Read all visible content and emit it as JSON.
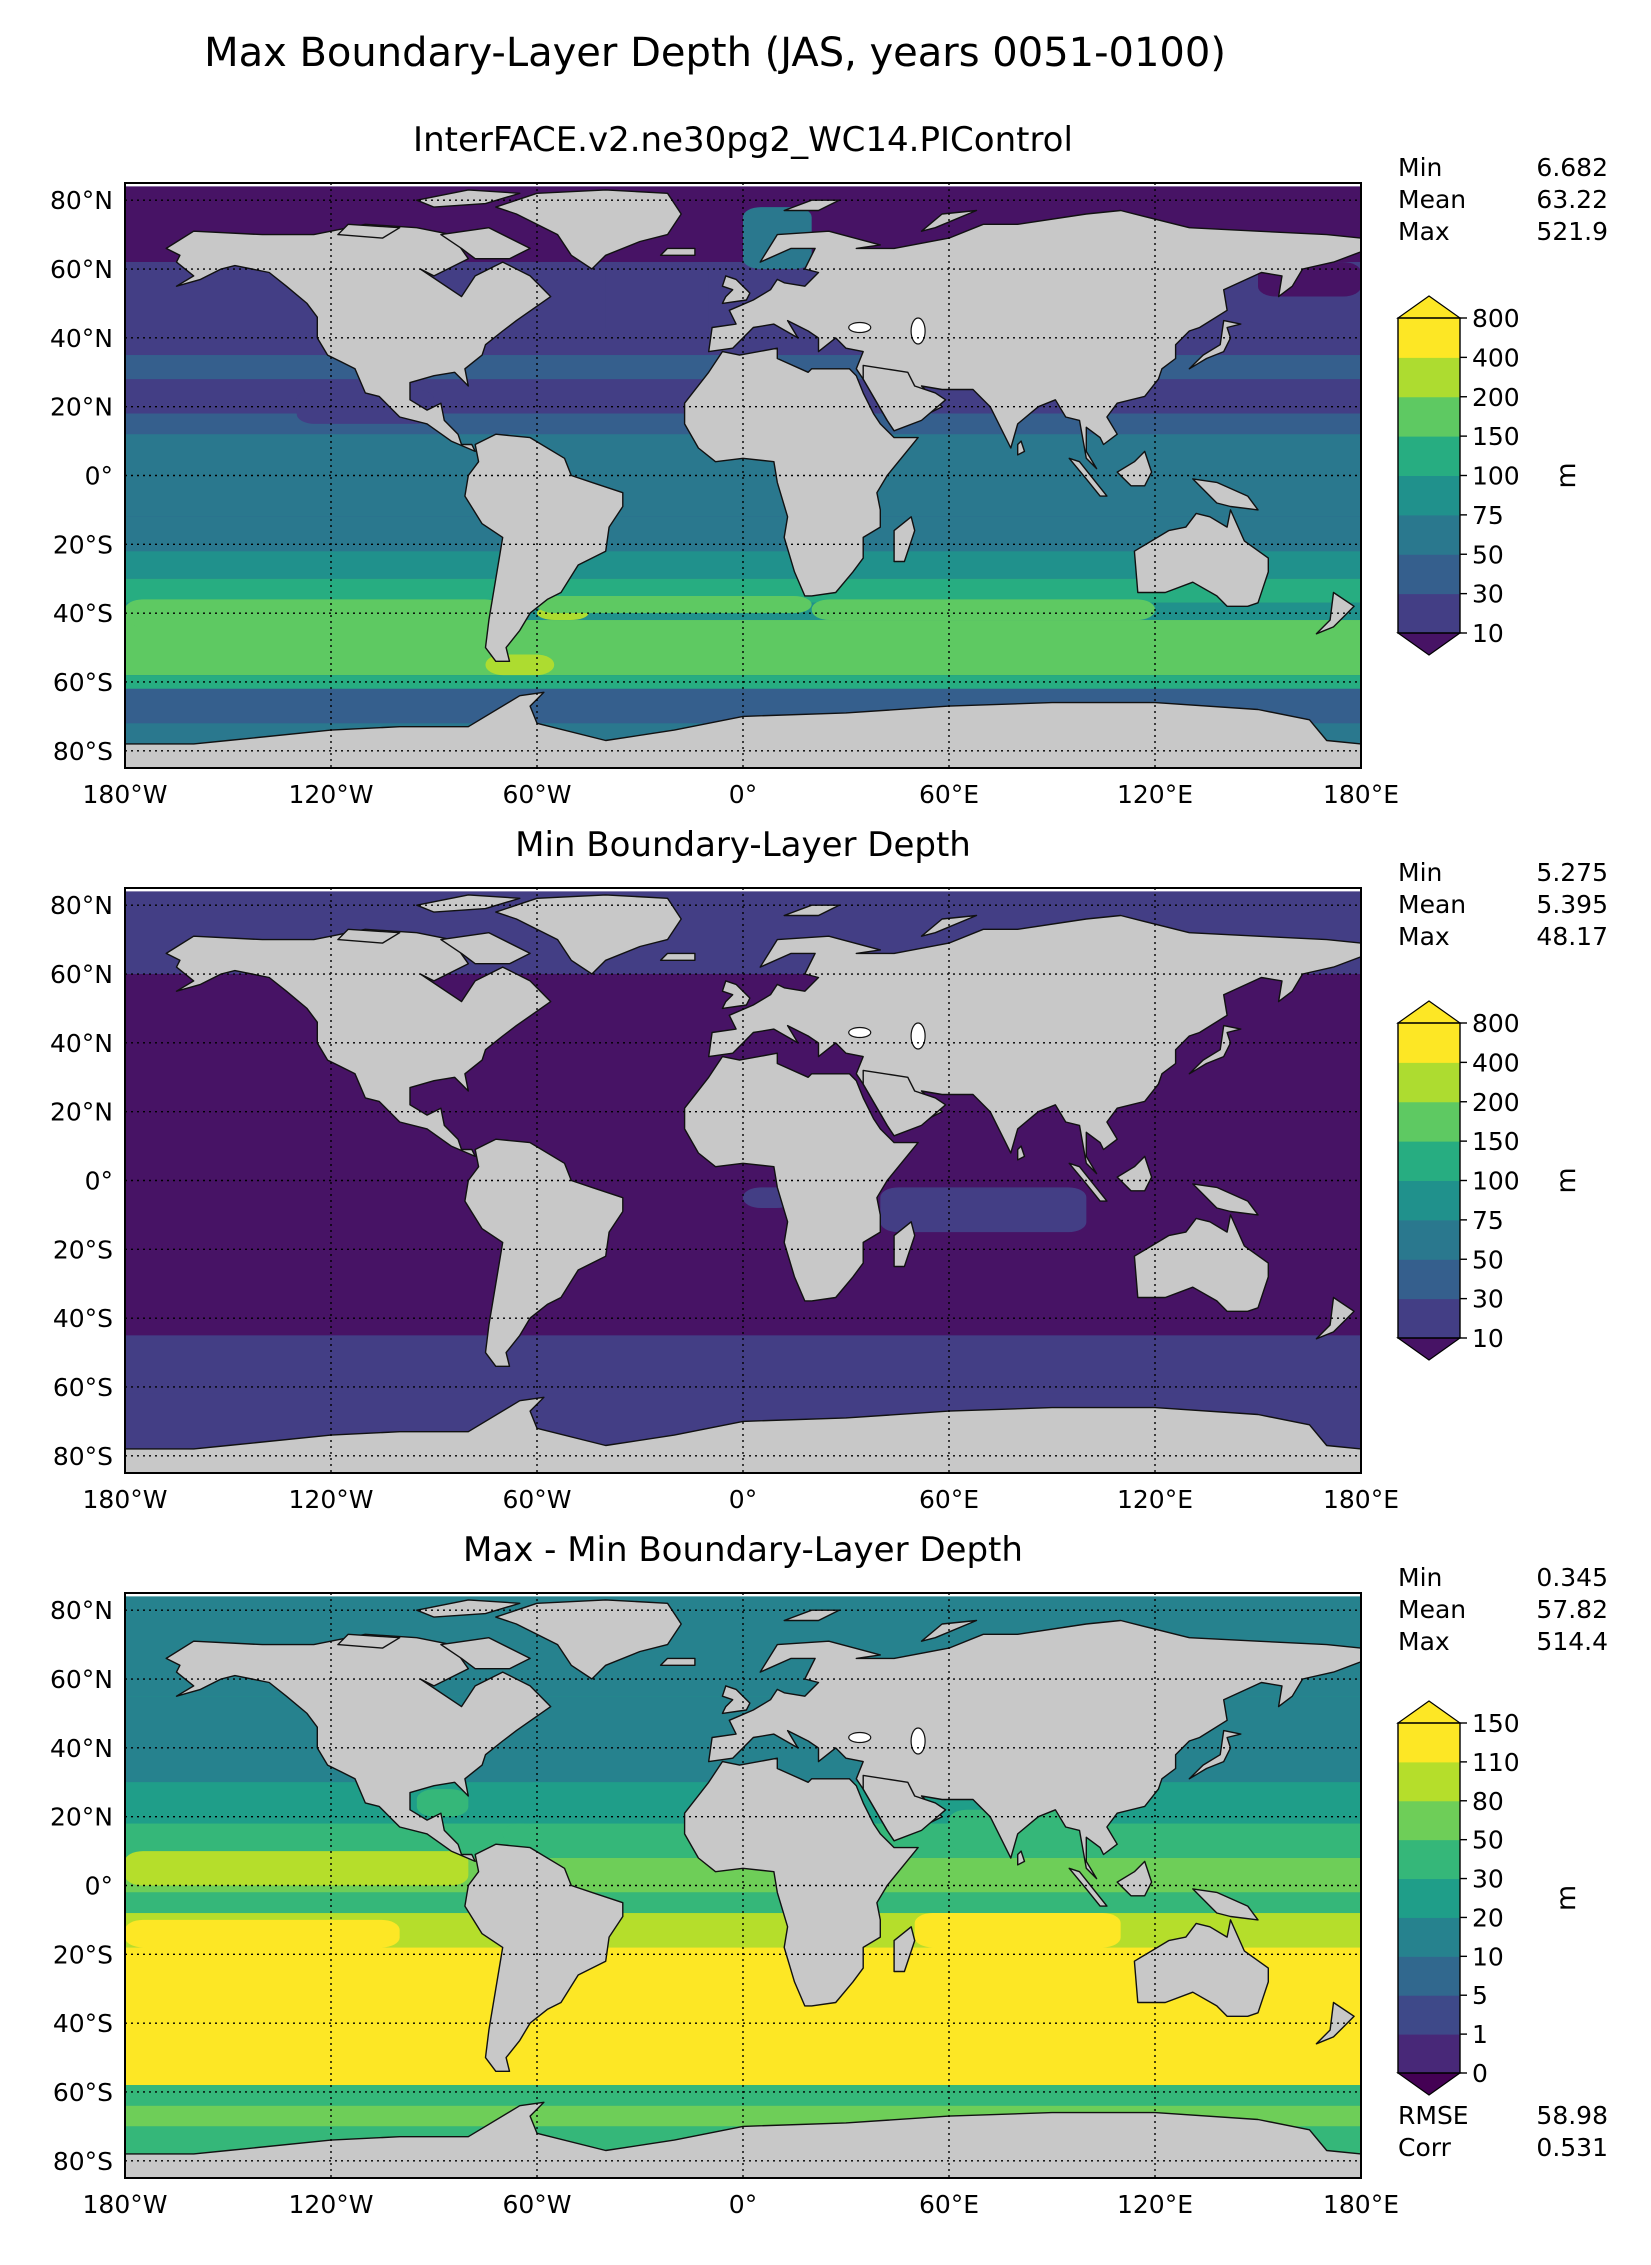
{
  "figure_title": "Max Boundary-Layer Depth (JAS, years 0051-0100)",
  "colors": {
    "land": "#c8c8c8",
    "frame": "#000000",
    "gridline": "#000000",
    "lake": "#ffffff"
  },
  "chart_data": [
    {
      "type": "contour-map",
      "title": "InterFACE.v2.ne30pg2_WC14.PIControl",
      "x_ticks": [
        "180°W",
        "120°W",
        "60°W",
        "0°",
        "60°E",
        "120°E",
        "180°E"
      ],
      "y_ticks": [
        "80°N",
        "60°N",
        "40°N",
        "20°N",
        "0°",
        "20°S",
        "40°S",
        "60°S",
        "80°S"
      ],
      "stats": [
        {
          "label": "Min",
          "value": "6.682"
        },
        {
          "label": "Mean",
          "value": "63.22"
        },
        {
          "label": "Max",
          "value": "521.9"
        }
      ],
      "colorbar": {
        "levels": [
          "10",
          "30",
          "50",
          "75",
          "100",
          "150",
          "200",
          "400",
          "800"
        ],
        "colors": [
          "#471365",
          "#433e85",
          "#355f8d",
          "#2a788e",
          "#20918c",
          "#27ad81",
          "#5ec962",
          "#addc30",
          "#fde725"
        ],
        "unit": "m"
      },
      "field": "max"
    },
    {
      "type": "contour-map",
      "title": "Min Boundary-Layer Depth",
      "x_ticks": [
        "180°W",
        "120°W",
        "60°W",
        "0°",
        "60°E",
        "120°E",
        "180°E"
      ],
      "y_ticks": [
        "80°N",
        "60°N",
        "40°N",
        "20°N",
        "0°",
        "20°S",
        "40°S",
        "60°S",
        "80°S"
      ],
      "stats": [
        {
          "label": "Min",
          "value": "5.275"
        },
        {
          "label": "Mean",
          "value": "5.395"
        },
        {
          "label": "Max",
          "value": "48.17"
        }
      ],
      "colorbar": {
        "levels": [
          "10",
          "30",
          "50",
          "75",
          "100",
          "150",
          "200",
          "400",
          "800"
        ],
        "colors": [
          "#471365",
          "#433e85",
          "#355f8d",
          "#2a788e",
          "#20918c",
          "#27ad81",
          "#5ec962",
          "#addc30",
          "#fde725"
        ],
        "unit": "m"
      },
      "field": "min"
    },
    {
      "type": "contour-map",
      "title": "Max - Min Boundary-Layer Depth",
      "x_ticks": [
        "180°W",
        "120°W",
        "60°W",
        "0°",
        "60°E",
        "120°E",
        "180°E"
      ],
      "y_ticks": [
        "80°N",
        "60°N",
        "40°N",
        "20°N",
        "0°",
        "20°S",
        "40°S",
        "60°S",
        "80°S"
      ],
      "stats": [
        {
          "label": "Min",
          "value": "0.345"
        },
        {
          "label": "Mean",
          "value": "57.82"
        },
        {
          "label": "Max",
          "value": "514.4"
        }
      ],
      "extra_stats": [
        {
          "label": "RMSE",
          "value": "58.98"
        },
        {
          "label": "Corr",
          "value": "0.531"
        }
      ],
      "colorbar": {
        "levels": [
          "0",
          "1",
          "5",
          "10",
          "20",
          "30",
          "50",
          "80",
          "110",
          "150"
        ],
        "colors": [
          "#440154",
          "#482878",
          "#3e4989",
          "#31688e",
          "#26828e",
          "#1f9e89",
          "#35b779",
          "#6ece58",
          "#b5de2b",
          "#fde725"
        ],
        "unit": "m"
      },
      "field": "diff"
    }
  ]
}
